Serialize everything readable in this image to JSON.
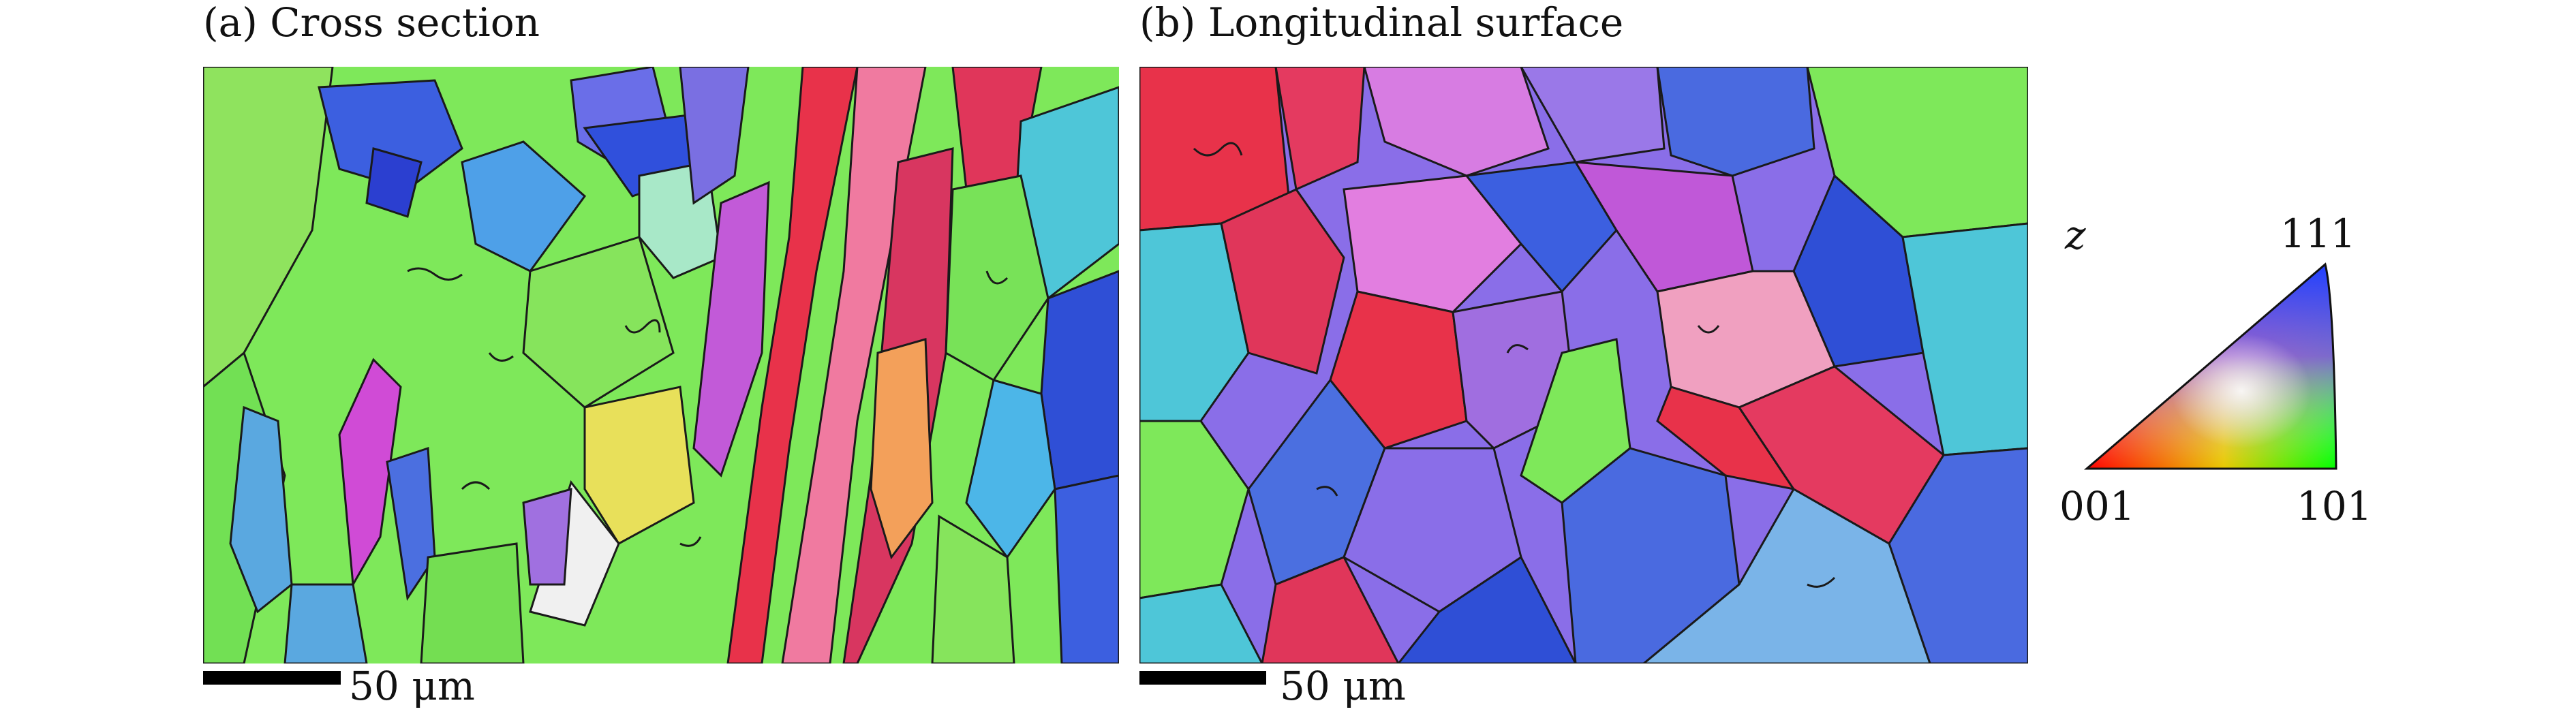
{
  "panels": [
    {
      "caption": "(a) Cross section",
      "scale_bar_label": "50 μm",
      "image_description_colors": [
        "#7ee85a",
        "#e8324a",
        "#3c5fe0",
        "#b95ee0",
        "#4ec6d8",
        "#f07aa0"
      ]
    },
    {
      "caption": "(b) Longitudinal surface",
      "scale_bar_label": "50 μm",
      "image_description_colors": [
        "#e8324a",
        "#3c5fe0",
        "#b95ee0",
        "#7ee85a",
        "#4ec6d8",
        "#f07aa0"
      ]
    }
  ],
  "legend": {
    "axis_label": "z",
    "corner_top": "111",
    "corner_left": "001",
    "corner_right": "101",
    "corner_colors": {
      "001": "#ff0000",
      "101": "#00ff00",
      "111": "#2040ff"
    }
  }
}
